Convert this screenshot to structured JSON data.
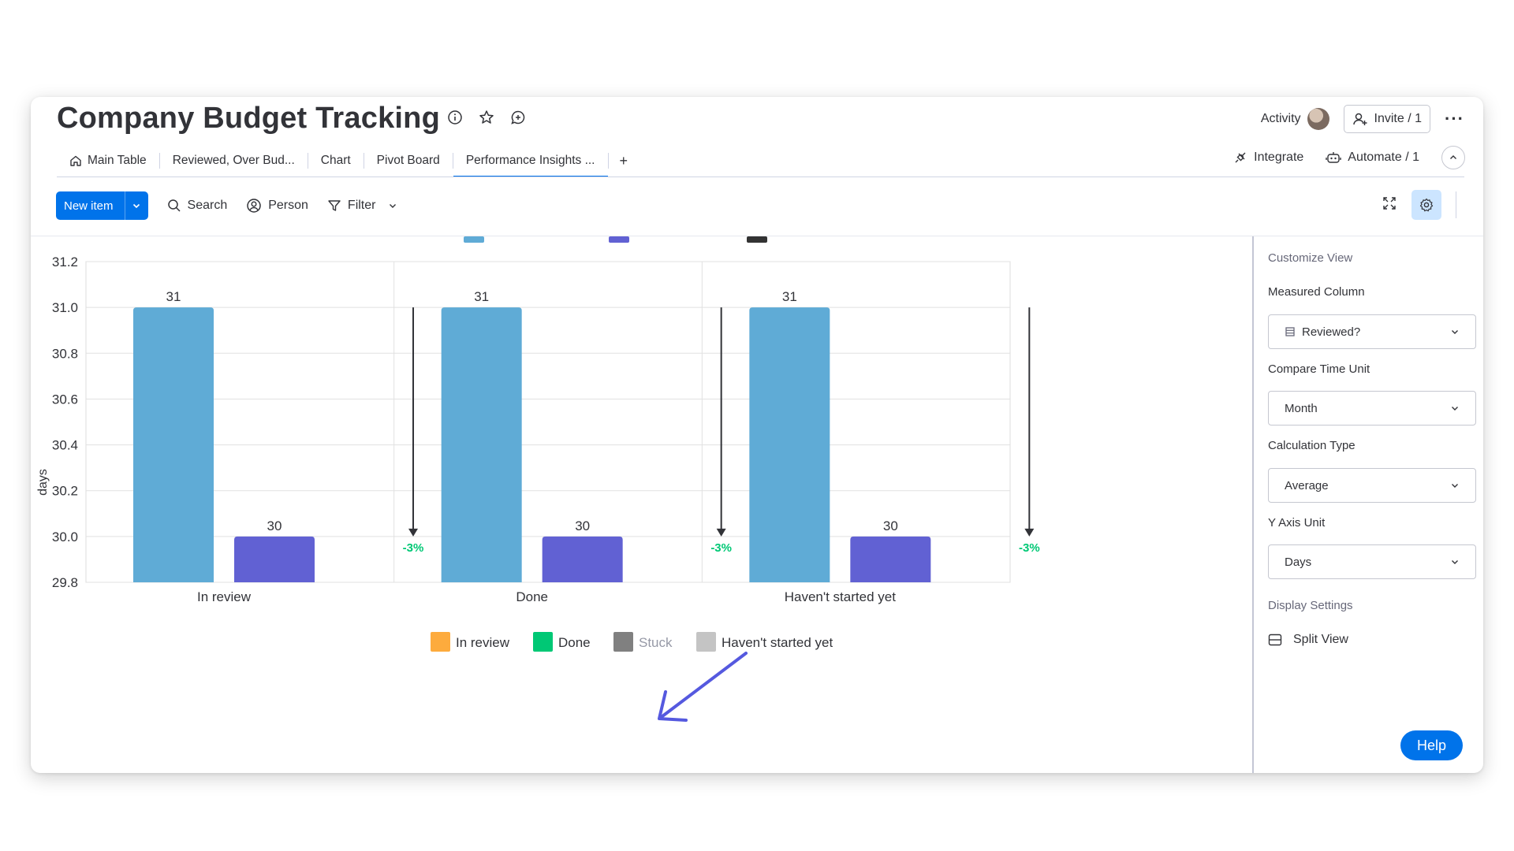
{
  "board": {
    "title": "Company Budget Tracking",
    "activity_label": "Activity",
    "invite_label": "Invite / 1"
  },
  "tabs": [
    {
      "label": "Main Table",
      "icon": "home-icon"
    },
    {
      "label": "Reviewed, Over Bud..."
    },
    {
      "label": "Chart"
    },
    {
      "label": "Pivot Board"
    },
    {
      "label": "Performance Insights ...",
      "active": true
    }
  ],
  "tab_add_label": "+",
  "tabs_right": {
    "integrate_label": "Integrate",
    "automate_label": "Automate / 1"
  },
  "toolbar": {
    "new_item_label": "New item",
    "search_label": "Search",
    "person_label": "Person",
    "filter_label": "Filter"
  },
  "chart_data": {
    "type": "bar",
    "categories": [
      "In review",
      "Done",
      "Haven't started yet"
    ],
    "series": [
      {
        "values": [
          31,
          31,
          31
        ],
        "color": "#5fabd6"
      },
      {
        "values": [
          30,
          30,
          30
        ],
        "color": "#6161d3"
      }
    ],
    "change_labels": [
      "-3%",
      "-3%",
      "-3%"
    ],
    "ylabel": "days",
    "ylim": [
      29.8,
      31.2
    ],
    "yticks": [
      "31.2",
      "31.0",
      "30.8",
      "30.6",
      "30.4",
      "30.2",
      "30.0",
      "29.8"
    ],
    "ytick_values": [
      31.2,
      31.0,
      30.8,
      30.6,
      30.4,
      30.2,
      30.0,
      29.8
    ],
    "grid": true,
    "legend": [
      {
        "label": "In review",
        "color": "#fdab3d",
        "muted": false
      },
      {
        "label": "Done",
        "color": "#00c875",
        "muted": false
      },
      {
        "label": "Stuck",
        "color": "#808080",
        "muted": true
      },
      {
        "label": "Haven't started yet",
        "color": "#c4c4c4",
        "muted": false
      }
    ],
    "annotation_color": "#5559df",
    "change_color": "#00c875"
  },
  "panel": {
    "heading": "Customize View",
    "measured_label": "Measured Column",
    "measured_value": "Reviewed?",
    "compare_label": "Compare Time Unit",
    "compare_value": "Month",
    "calc_label": "Calculation Type",
    "calc_value": "Average",
    "yaxis_label": "Y Axis Unit",
    "yaxis_value": "Days",
    "display_heading": "Display Settings",
    "split_label": "Split View"
  },
  "help_label": "Help"
}
